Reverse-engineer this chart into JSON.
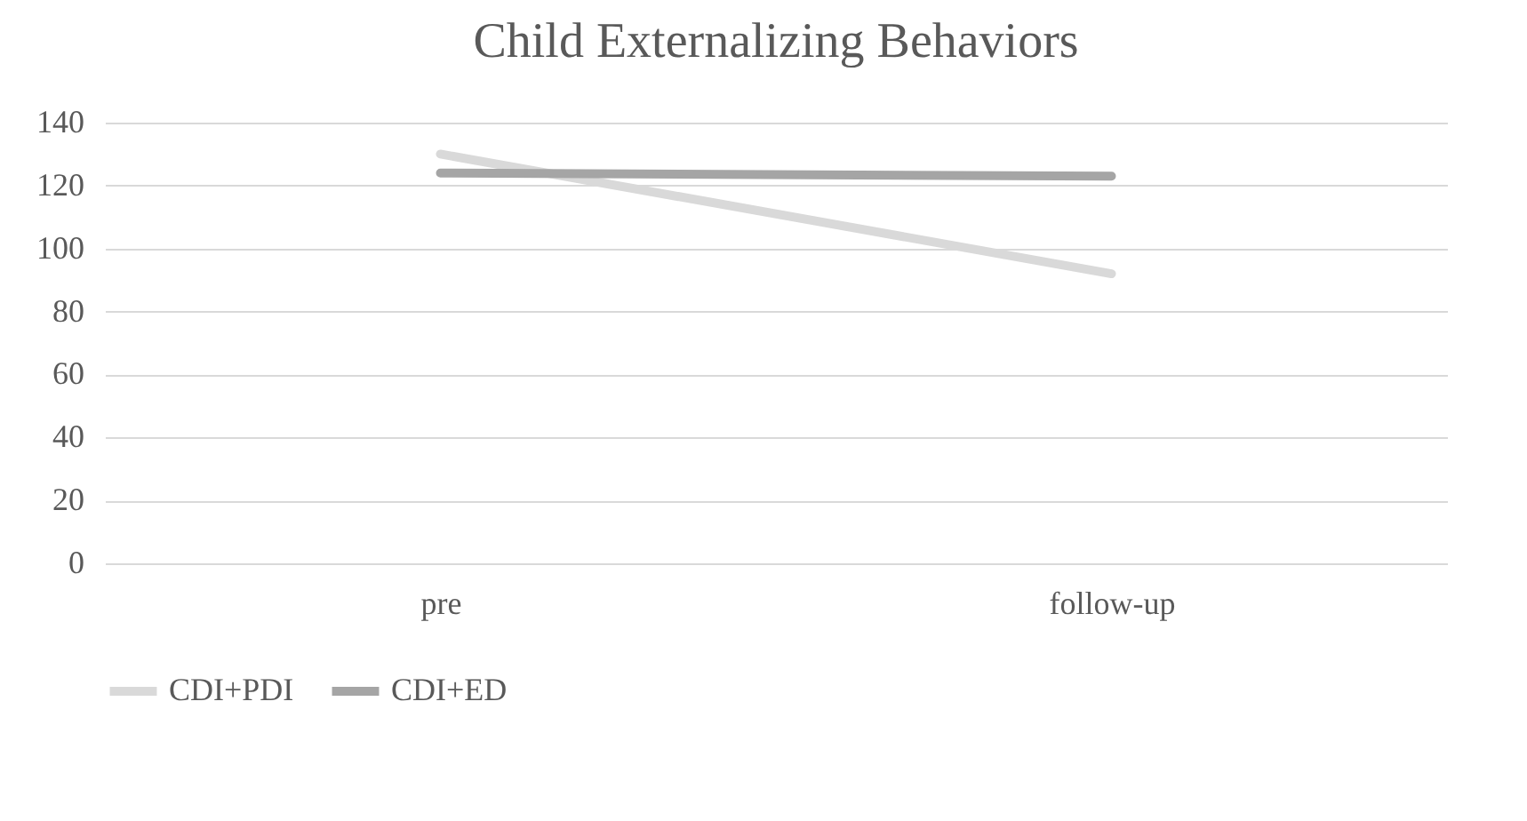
{
  "chart_data": {
    "type": "line",
    "title": "Child Externalizing Behaviors",
    "categories": [
      "pre",
      "follow-up"
    ],
    "series": [
      {
        "name": "CDI+PDI",
        "color": "#d9d9d9",
        "values": [
          130,
          92
        ]
      },
      {
        "name": "CDI+ED",
        "color": "#a5a5a5",
        "values": [
          124,
          123
        ]
      }
    ],
    "ylim": [
      0,
      140
    ],
    "yticks": [
      0,
      20,
      40,
      60,
      80,
      100,
      120,
      140
    ],
    "grid": "y",
    "legend": "bottom",
    "marker": "none",
    "line_style": "solid"
  }
}
